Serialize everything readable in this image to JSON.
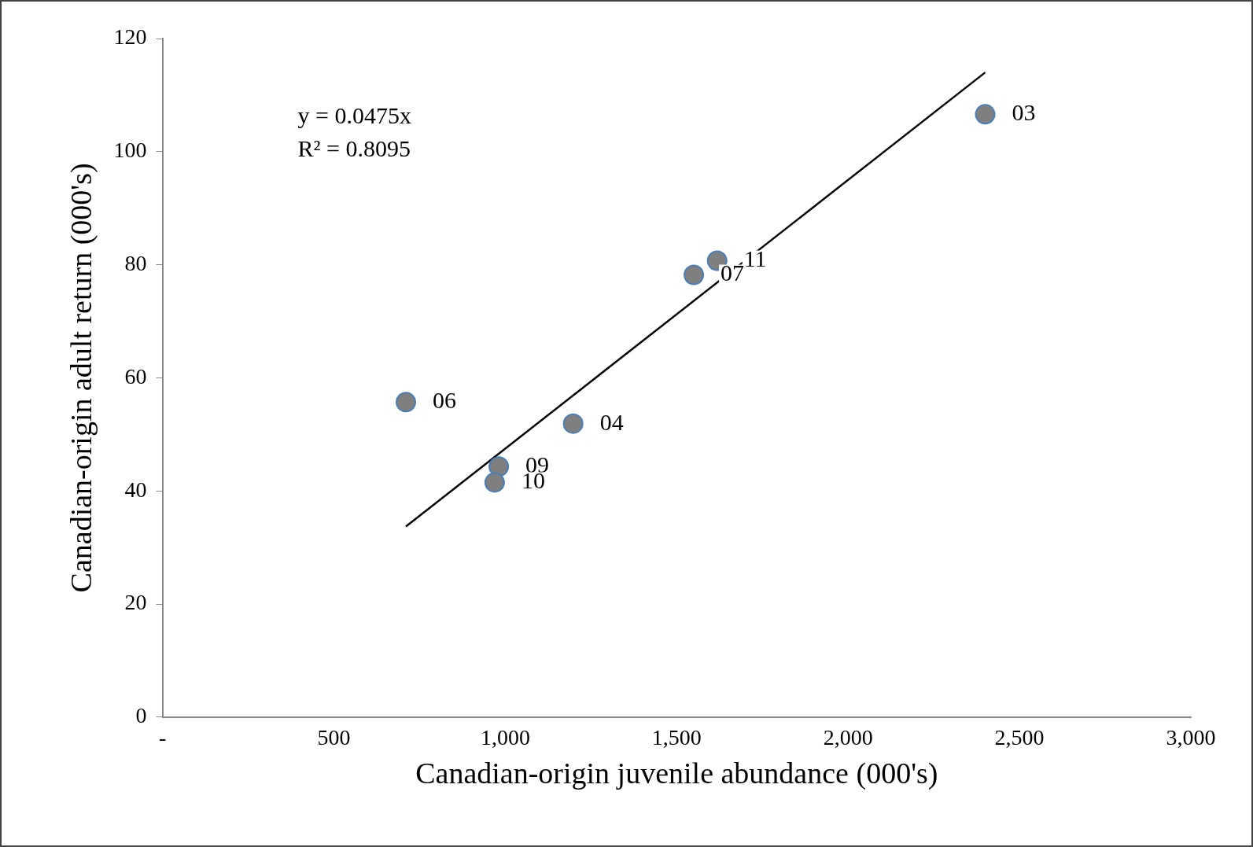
{
  "chart_data": {
    "type": "scatter",
    "xlabel": "Canadian-origin juvenile abundance (000's)",
    "ylabel": "Canadian-origin adult return (000's)",
    "x": [
      2400,
      1618,
      1550,
      710,
      1198,
      981,
      969
    ],
    "series": [
      {
        "type": "scatter",
        "marker": "circle",
        "color": "#7f7f7f",
        "values": [
          106.6,
          80.7,
          78.2,
          55.7,
          51.9,
          44.3,
          41.5
        ]
      },
      {
        "type": "line",
        "marker": "none",
        "color": "#000000",
        "x": [
          710,
          2400
        ],
        "values": [
          33.7,
          114
        ]
      }
    ],
    "xlim": [
      0,
      3000
    ],
    "xticks": [
      {
        "value": 0,
        "label": "-"
      },
      500,
      {
        "value": 1000,
        "label": "1,000"
      },
      {
        "value": 1500,
        "label": "1,500"
      },
      {
        "value": 2000,
        "label": "2,000"
      },
      {
        "value": 2500,
        "label": "2,500"
      },
      {
        "value": 3000,
        "label": "3,000"
      }
    ],
    "ylim": [
      0,
      120
    ],
    "yticks": [
      0,
      20,
      40,
      60,
      80,
      100,
      120
    ],
    "grid": false,
    "legend": false,
    "line_style": "solid",
    "annotations": [
      "y = 0.0475x",
      "R² = 0.8095",
      {
        "text": "03",
        "x": 2400,
        "y": 106.6
      },
      {
        "text": "11",
        "x": 1618,
        "y": 80.7
      },
      {
        "text": "07",
        "x": 1550,
        "y": 78.2
      },
      {
        "text": "06",
        "x": 710,
        "y": 55.7
      },
      {
        "text": "04",
        "x": 1198,
        "y": 51.9
      },
      {
        "text": "09",
        "x": 981,
        "y": 44.3
      },
      {
        "text": "10",
        "x": 969,
        "y": 41.5
      }
    ]
  }
}
